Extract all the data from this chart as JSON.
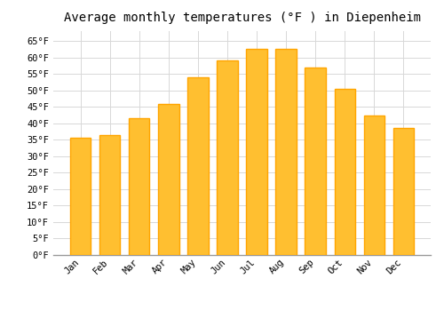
{
  "title": "Average monthly temperatures (°F ) in Diepenheim",
  "months": [
    "Jan",
    "Feb",
    "Mar",
    "Apr",
    "May",
    "Jun",
    "Jul",
    "Aug",
    "Sep",
    "Oct",
    "Nov",
    "Dec"
  ],
  "values": [
    35.5,
    36.5,
    41.5,
    46,
    54,
    59,
    62.5,
    62.5,
    57,
    50.5,
    42.5,
    38.5
  ],
  "bar_color": "#FFA500",
  "bar_face_color": "#FFBF30",
  "background_color": "#FFFFFF",
  "grid_color": "#D8D8D8",
  "ylim": [
    0,
    68
  ],
  "yticks": [
    0,
    5,
    10,
    15,
    20,
    25,
    30,
    35,
    40,
    45,
    50,
    55,
    60,
    65
  ],
  "title_fontsize": 10,
  "tick_fontsize": 7.5,
  "font_family": "monospace"
}
